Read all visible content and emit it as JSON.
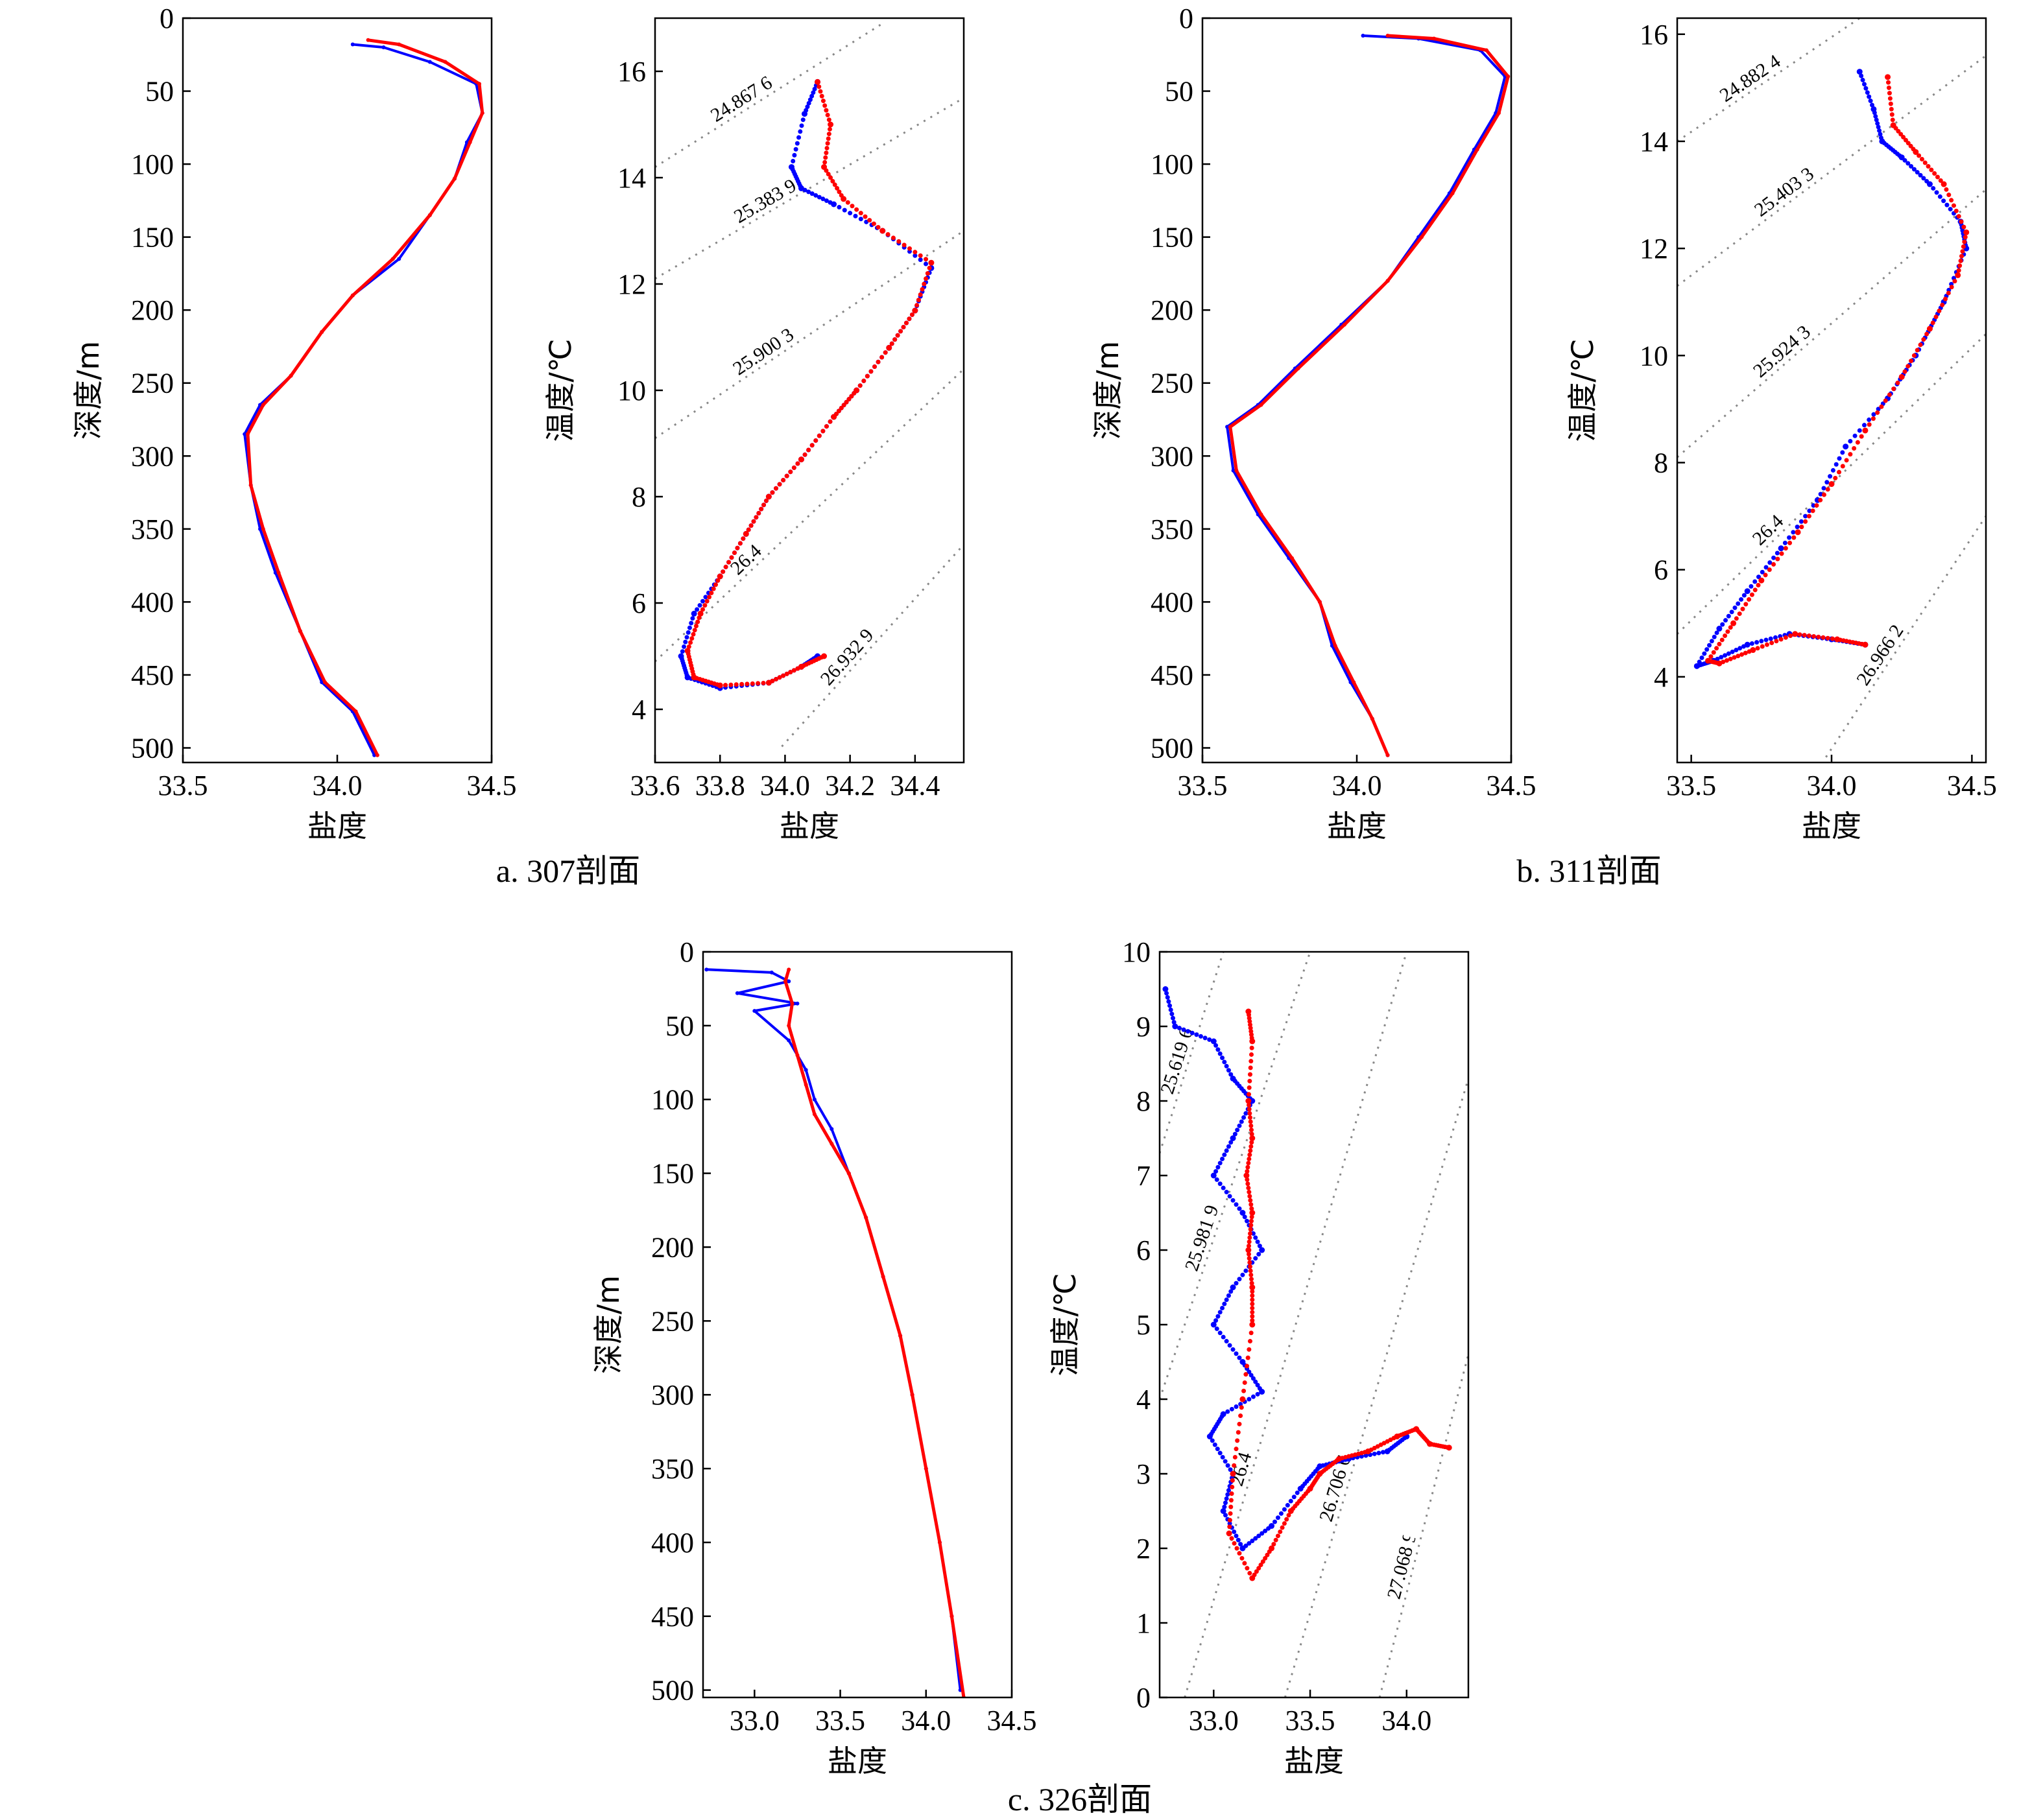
{
  "colors": {
    "obs": "#0000ff",
    "model": "#ff0000",
    "isopycnal": "#888888",
    "axis": "#000000"
  },
  "captions": [
    {
      "id": "a",
      "text": "a. 307剖面"
    },
    {
      "id": "b",
      "text": "b. 311剖面"
    },
    {
      "id": "c",
      "text": "c. 326剖面"
    }
  ],
  "chart_data": [
    {
      "id": "a-depth",
      "type": "line",
      "section": "a",
      "xlabel": "盐度",
      "ylabel": "深度/m",
      "xlim": [
        33.5,
        34.5
      ],
      "ylim": [
        0,
        510
      ],
      "y_inverted": true,
      "xticks": [
        33.5,
        34.0,
        34.5
      ],
      "xtick_labels": [
        "33.5",
        "34.0",
        "34.5"
      ],
      "yticks": [
        0,
        50,
        100,
        150,
        200,
        250,
        300,
        350,
        400,
        450,
        500
      ],
      "ytick_labels": [
        "0",
        "50",
        "100",
        "150",
        "200",
        "250",
        "300",
        "350",
        "400",
        "450",
        "500"
      ],
      "series": [
        {
          "color": "blue",
          "style": "line",
          "x": [
            34.05,
            34.15,
            34.3,
            34.45,
            34.47,
            34.42,
            34.38,
            34.3,
            34.2,
            34.05,
            33.95,
            33.85,
            33.75,
            33.7,
            33.72,
            33.75,
            33.8,
            33.88,
            33.95,
            34.05,
            34.12
          ],
          "y": [
            18,
            20,
            30,
            45,
            65,
            85,
            110,
            135,
            165,
            190,
            215,
            245,
            265,
            285,
            320,
            350,
            380,
            420,
            455,
            475,
            505
          ]
        },
        {
          "color": "red",
          "style": "line",
          "x": [
            34.1,
            34.2,
            34.35,
            34.46,
            34.47,
            34.43,
            34.38,
            34.3,
            34.18,
            34.05,
            33.95,
            33.85,
            33.76,
            33.71,
            33.72,
            33.76,
            33.81,
            33.88,
            33.96,
            34.06,
            34.13
          ],
          "y": [
            15,
            18,
            30,
            45,
            65,
            85,
            110,
            135,
            165,
            190,
            215,
            245,
            265,
            285,
            320,
            350,
            380,
            420,
            455,
            475,
            505
          ]
        }
      ]
    },
    {
      "id": "a-ts",
      "type": "scatter",
      "section": "a",
      "xlabel": "盐度",
      "ylabel": "温度/℃",
      "xlim": [
        33.6,
        34.55
      ],
      "ylim": [
        3,
        17
      ],
      "xticks": [
        33.6,
        33.8,
        34.0,
        34.2,
        34.4
      ],
      "xtick_labels": [
        "33.6",
        "33.8",
        "34.0",
        "34.2",
        "34.4"
      ],
      "yticks": [
        4,
        6,
        8,
        10,
        12,
        14,
        16
      ],
      "ytick_labels": [
        "4",
        "6",
        "8",
        "10",
        "12",
        "14",
        "16"
      ],
      "isopycnals": [
        {
          "label": "24.867 6",
          "p1": [
            33.6,
            14.2
          ],
          "p2": [
            34.3,
            16.9
          ]
        },
        {
          "label": "25.383 9",
          "p1": [
            33.6,
            12.1
          ],
          "p2": [
            34.55,
            15.5
          ]
        },
        {
          "label": "25.900 3",
          "p1": [
            33.6,
            9.1
          ],
          "p2": [
            34.55,
            13.0
          ]
        },
        {
          "label": "26.4",
          "p1": [
            33.6,
            4.9
          ],
          "p2": [
            34.55,
            10.4
          ]
        },
        {
          "label": "26.932 9",
          "p1": [
            33.99,
            3.3
          ],
          "p2": [
            34.55,
            7.1
          ]
        }
      ],
      "series": [
        {
          "color": "blue",
          "style": "dots",
          "x": [
            34.1,
            34.06,
            34.02,
            34.05,
            34.15,
            34.3,
            34.45,
            34.4,
            34.32,
            34.22,
            34.15,
            34.05,
            33.95,
            33.88,
            33.8,
            33.72,
            33.68,
            33.7,
            33.8,
            33.95,
            34.05,
            34.1
          ],
          "y": [
            15.8,
            15.2,
            14.2,
            13.8,
            13.5,
            13.0,
            12.3,
            11.5,
            10.8,
            10.0,
            9.5,
            8.7,
            8.0,
            7.3,
            6.5,
            5.8,
            5.0,
            4.6,
            4.4,
            4.5,
            4.8,
            5.0
          ]
        },
        {
          "color": "red",
          "style": "dots",
          "x": [
            34.1,
            34.14,
            34.12,
            34.18,
            34.3,
            34.45,
            34.4,
            34.32,
            34.22,
            34.15,
            34.05,
            33.95,
            33.88,
            33.8,
            33.74,
            33.7,
            33.72,
            33.8,
            33.95,
            34.05,
            34.12
          ],
          "y": [
            15.8,
            15.0,
            14.2,
            13.6,
            13.0,
            12.4,
            11.5,
            10.8,
            10.0,
            9.5,
            8.7,
            8.0,
            7.3,
            6.5,
            5.8,
            5.1,
            4.6,
            4.45,
            4.5,
            4.8,
            5.0
          ]
        }
      ]
    },
    {
      "id": "b-depth",
      "type": "line",
      "section": "b",
      "xlabel": "盐度",
      "ylabel": "深度/m",
      "xlim": [
        33.5,
        34.5
      ],
      "ylim": [
        0,
        510
      ],
      "y_inverted": true,
      "xticks": [
        33.5,
        34.0,
        34.5
      ],
      "xtick_labels": [
        "33.5",
        "34.0",
        "34.5"
      ],
      "yticks": [
        0,
        50,
        100,
        150,
        200,
        250,
        300,
        350,
        400,
        450,
        500
      ],
      "ytick_labels": [
        "0",
        "50",
        "100",
        "150",
        "200",
        "250",
        "300",
        "350",
        "400",
        "450",
        "500"
      ],
      "series": [
        {
          "color": "blue",
          "style": "line",
          "x": [
            34.02,
            34.2,
            34.4,
            34.48,
            34.45,
            34.38,
            34.3,
            34.2,
            34.1,
            33.95,
            33.8,
            33.68,
            33.58,
            33.6,
            33.68,
            33.78,
            33.88,
            33.92,
            33.98,
            34.05,
            34.1
          ],
          "y": [
            12,
            14,
            22,
            40,
            65,
            90,
            120,
            150,
            180,
            210,
            240,
            265,
            280,
            310,
            340,
            370,
            400,
            430,
            455,
            480,
            505
          ]
        },
        {
          "color": "red",
          "style": "line",
          "x": [
            34.1,
            34.25,
            34.42,
            34.49,
            34.46,
            34.39,
            34.31,
            34.21,
            34.1,
            33.96,
            33.81,
            33.69,
            33.59,
            33.61,
            33.69,
            33.79,
            33.88,
            33.93,
            33.99,
            34.05,
            34.1
          ],
          "y": [
            12,
            14,
            22,
            40,
            65,
            90,
            120,
            150,
            180,
            210,
            240,
            265,
            280,
            310,
            340,
            370,
            400,
            430,
            455,
            480,
            505
          ]
        }
      ]
    },
    {
      "id": "b-ts",
      "type": "scatter",
      "section": "b",
      "xlabel": "盐度",
      "ylabel": "温度/℃",
      "xlim": [
        33.45,
        34.55
      ],
      "ylim": [
        2.4,
        16.3
      ],
      "xticks": [
        33.5,
        34.0,
        34.5
      ],
      "xtick_labels": [
        "33.5",
        "34.0",
        "34.5"
      ],
      "yticks": [
        4,
        6,
        8,
        10,
        12,
        14,
        16
      ],
      "ytick_labels": [
        "4",
        "6",
        "8",
        "10",
        "12",
        "14",
        "16"
      ],
      "isopycnals": [
        {
          "label": "24.882 4",
          "p1": [
            33.45,
            14.0
          ],
          "p2": [
            34.1,
            16.3
          ]
        },
        {
          "label": "25.403 3",
          "p1": [
            33.45,
            11.3
          ],
          "p2": [
            34.55,
            15.6
          ]
        },
        {
          "label": "25.924 3",
          "p1": [
            33.45,
            8.1
          ],
          "p2": [
            34.55,
            13.1
          ]
        },
        {
          "label": "26.4",
          "p1": [
            33.45,
            4.8
          ],
          "p2": [
            34.55,
            10.4
          ]
        },
        {
          "label": "26.966 2",
          "p1": [
            33.98,
            2.5
          ],
          "p2": [
            34.55,
            7.0
          ]
        }
      ],
      "series": [
        {
          "color": "blue",
          "style": "dots",
          "x": [
            34.1,
            34.15,
            34.18,
            34.25,
            34.35,
            34.46,
            34.48,
            34.4,
            34.3,
            34.2,
            34.05,
            33.95,
            33.82,
            33.7,
            33.6,
            33.52,
            33.58,
            33.7,
            33.85,
            34.0,
            34.12
          ],
          "y": [
            15.3,
            14.6,
            14.0,
            13.7,
            13.2,
            12.5,
            12.0,
            11.0,
            10.0,
            9.2,
            8.3,
            7.3,
            6.4,
            5.6,
            4.9,
            4.2,
            4.3,
            4.6,
            4.8,
            4.7,
            4.6
          ]
        },
        {
          "color": "red",
          "style": "dots",
          "x": [
            34.2,
            34.22,
            34.3,
            34.4,
            34.48,
            34.45,
            34.35,
            34.25,
            34.12,
            34.0,
            33.88,
            33.75,
            33.65,
            33.56,
            33.6,
            33.72,
            33.87,
            34.02,
            34.12
          ],
          "y": [
            15.2,
            14.3,
            13.8,
            13.2,
            12.3,
            11.5,
            10.5,
            9.6,
            8.6,
            7.6,
            6.7,
            5.8,
            5.0,
            4.3,
            4.25,
            4.5,
            4.8,
            4.7,
            4.6
          ]
        }
      ]
    },
    {
      "id": "c-depth",
      "type": "line",
      "section": "c",
      "xlabel": "盐度",
      "ylabel": "深度/m",
      "xlim": [
        32.7,
        34.5
      ],
      "ylim": [
        0,
        505
      ],
      "y_inverted": true,
      "xticks": [
        33.0,
        33.5,
        34.0,
        34.5
      ],
      "xtick_labels": [
        "33.0",
        "33.5",
        "34.0",
        "34.5"
      ],
      "yticks": [
        0,
        50,
        100,
        150,
        200,
        250,
        300,
        350,
        400,
        450,
        500
      ],
      "ytick_labels": [
        "0",
        "50",
        "100",
        "150",
        "200",
        "250",
        "300",
        "350",
        "400",
        "450",
        "500"
      ],
      "series": [
        {
          "color": "blue",
          "style": "line",
          "x": [
            32.72,
            33.1,
            33.2,
            32.9,
            33.25,
            33.0,
            33.2,
            33.3,
            33.35,
            33.45,
            33.55,
            33.65,
            33.75,
            33.85,
            33.92,
            34.0,
            34.08,
            34.15,
            34.2
          ],
          "y": [
            12,
            14,
            20,
            28,
            35,
            40,
            60,
            80,
            100,
            120,
            150,
            180,
            220,
            260,
            300,
            350,
            400,
            450,
            500
          ]
        },
        {
          "color": "red",
          "style": "line",
          "x": [
            33.2,
            33.18,
            33.22,
            33.2,
            33.25,
            33.3,
            33.35,
            33.45,
            33.55,
            33.65,
            33.75,
            33.85,
            33.92,
            34.0,
            34.08,
            34.15,
            34.22
          ],
          "y": [
            12,
            20,
            35,
            50,
            70,
            90,
            110,
            130,
            150,
            180,
            220,
            260,
            300,
            350,
            400,
            450,
            505
          ]
        }
      ]
    },
    {
      "id": "c-ts",
      "type": "scatter",
      "section": "c",
      "xlabel": "盐度",
      "ylabel": "温度/℃",
      "xlim": [
        32.72,
        34.32
      ],
      "ylim": [
        0,
        10
      ],
      "xticks": [
        33.0,
        33.5,
        34.0
      ],
      "xtick_labels": [
        "33.0",
        "33.5",
        "34.0"
      ],
      "yticks": [
        0,
        1,
        2,
        3,
        4,
        5,
        6,
        7,
        8,
        9,
        10
      ],
      "ytick_labels": [
        "0",
        "1",
        "2",
        "3",
        "4",
        "5",
        "6",
        "7",
        "8",
        "9",
        "10"
      ],
      "isopycnals": [
        {
          "label": "25.619 6",
          "p1": [
            32.72,
            7.3
          ],
          "p2": [
            33.05,
            10.0
          ]
        },
        {
          "label": "25.981 9",
          "p1": [
            32.72,
            4.0
          ],
          "p2": [
            33.5,
            10.0
          ]
        },
        {
          "label": "26.4",
          "p1": [
            32.85,
            0.0
          ],
          "p2": [
            34.0,
            10.0
          ]
        },
        {
          "label": "26.706 6",
          "p1": [
            33.37,
            0.0
          ],
          "p2": [
            34.32,
            8.3
          ]
        },
        {
          "label": "27.068 9",
          "p1": [
            33.86,
            0.0
          ],
          "p2": [
            34.32,
            4.6
          ]
        }
      ],
      "series": [
        {
          "color": "blue",
          "style": "dots",
          "x": [
            32.75,
            32.8,
            33.0,
            33.1,
            33.2,
            33.1,
            33.0,
            33.15,
            33.25,
            33.1,
            33.0,
            33.15,
            33.25,
            33.05,
            32.98,
            33.1,
            33.05,
            33.15,
            33.3,
            33.45,
            33.55,
            33.7,
            33.9,
            34.0
          ],
          "y": [
            9.5,
            9.0,
            8.8,
            8.3,
            8.0,
            7.5,
            7.0,
            6.5,
            6.0,
            5.5,
            5.0,
            4.5,
            4.1,
            3.8,
            3.5,
            3.0,
            2.5,
            2.0,
            2.3,
            2.8,
            3.1,
            3.2,
            3.3,
            3.5
          ]
        },
        {
          "color": "red",
          "style": "dots",
          "x": [
            33.18,
            33.2,
            33.18,
            33.2,
            33.17,
            33.2,
            33.18,
            33.2,
            33.2,
            33.15,
            33.1,
            33.08,
            33.2,
            33.3,
            33.4,
            33.5,
            33.55,
            33.65,
            33.8,
            33.95,
            34.05,
            34.12,
            34.22
          ],
          "y": [
            9.2,
            8.8,
            8.0,
            7.5,
            7.0,
            6.5,
            6.0,
            5.5,
            5.0,
            4.0,
            3.0,
            2.2,
            1.6,
            2.0,
            2.5,
            2.8,
            3.0,
            3.2,
            3.3,
            3.5,
            3.6,
            3.4,
            3.35
          ]
        }
      ]
    }
  ]
}
